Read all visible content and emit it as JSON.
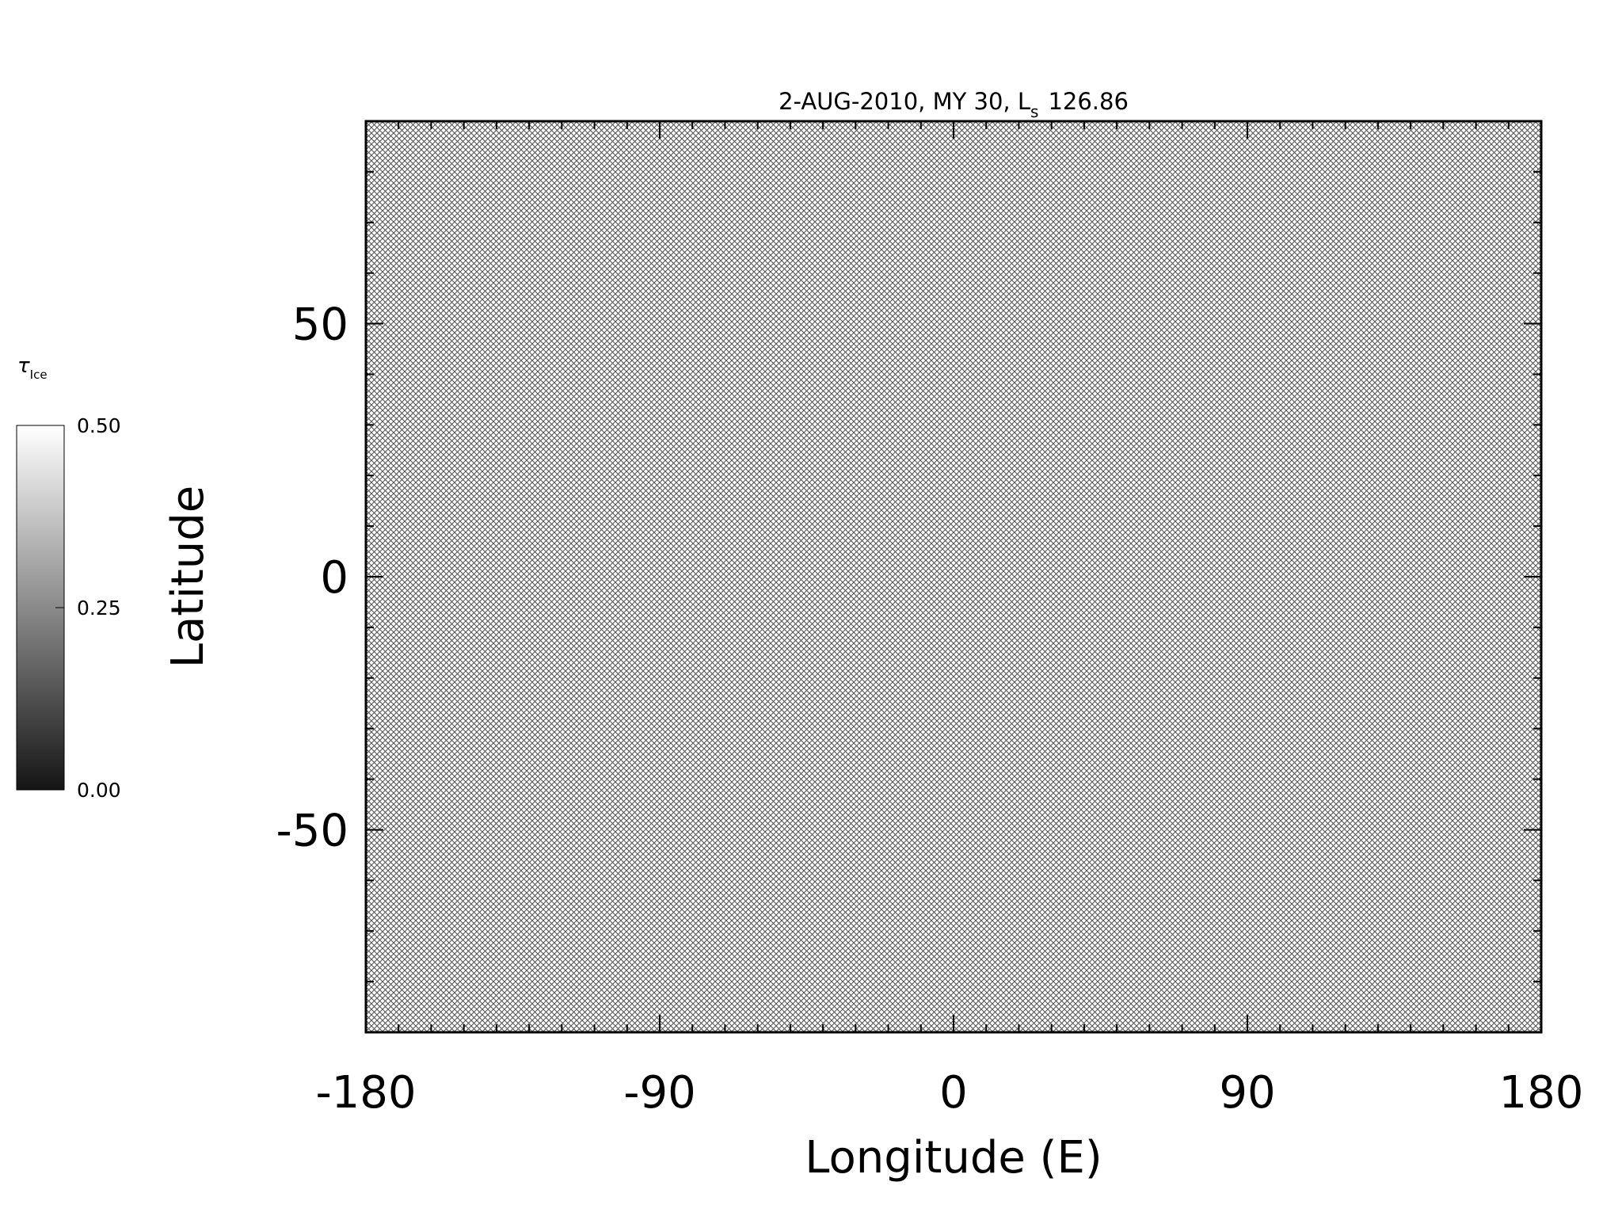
{
  "chart_data": {
    "type": "map",
    "title": {
      "text": "2-AUG-2010, MY 30,  L",
      "subscript": "s",
      "value": "126.86"
    },
    "xlabel": "Longitude (E)",
    "ylabel": "Latitude",
    "xlim": [
      -180,
      180
    ],
    "xticks": [
      -180,
      -90,
      0,
      90,
      180
    ],
    "x_minor_step": 10,
    "ylim": [
      -90,
      90
    ],
    "yticks": [
      -50,
      0,
      50
    ],
    "y_minor_step": 10,
    "colorbar": {
      "label": "τ",
      "label_subscript": "Ice",
      "lim": [
        0,
        0.5
      ],
      "ticks": [
        {
          "value": 0,
          "label": "0.00"
        },
        {
          "value": 0.25,
          "label": "0.25"
        },
        {
          "value": 0.5,
          "label": "0.50"
        }
      ],
      "colors": [
        "#151515",
        "#ffffff"
      ]
    }
  }
}
